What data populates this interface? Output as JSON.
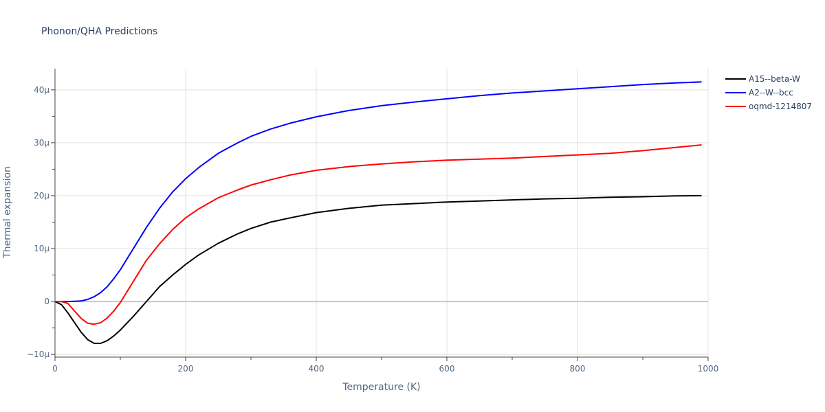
{
  "chart_data": {
    "type": "line",
    "title": "Phonon/QHA Predictions",
    "xlabel": "Temperature (K)",
    "ylabel": "Thermal expansion",
    "xlim": [
      0,
      1000
    ],
    "ylim": [
      -10.5,
      44
    ],
    "x_ticks": [
      0,
      200,
      400,
      600,
      800,
      1000
    ],
    "x_tick_labels": [
      "0",
      "200",
      "400",
      "600",
      "800",
      "1000"
    ],
    "y_ticks": [
      -10,
      0,
      10,
      20,
      30,
      40
    ],
    "y_tick_labels": [
      "−10μ",
      "0",
      "10μ",
      "20μ",
      "30μ",
      "40μ"
    ],
    "grid": true,
    "legend_position": "top-right",
    "series": [
      {
        "name": "A15--beta-W",
        "color": "#000000",
        "x": [
          0,
          10,
          20,
          30,
          40,
          50,
          60,
          70,
          80,
          90,
          100,
          120,
          140,
          160,
          180,
          200,
          220,
          250,
          280,
          300,
          330,
          360,
          400,
          450,
          500,
          550,
          600,
          650,
          700,
          750,
          800,
          850,
          900,
          950,
          990
        ],
        "y": [
          0,
          -0.6,
          -2.2,
          -4.0,
          -5.8,
          -7.2,
          -7.9,
          -7.9,
          -7.4,
          -6.5,
          -5.4,
          -2.8,
          0,
          2.8,
          5.0,
          7.0,
          8.8,
          11.0,
          12.8,
          13.8,
          15.0,
          15.8,
          16.8,
          17.6,
          18.2,
          18.5,
          18.8,
          19.0,
          19.2,
          19.4,
          19.5,
          19.7,
          19.8,
          19.95,
          20.0
        ]
      },
      {
        "name": "A2--W--bcc",
        "color": "#0000ff",
        "x": [
          0,
          10,
          20,
          30,
          40,
          50,
          60,
          70,
          80,
          90,
          100,
          120,
          140,
          160,
          180,
          200,
          220,
          250,
          280,
          300,
          330,
          360,
          400,
          450,
          500,
          550,
          600,
          650,
          700,
          750,
          800,
          850,
          900,
          950,
          990
        ],
        "y": [
          0,
          0,
          0,
          0.05,
          0.1,
          0.4,
          0.9,
          1.7,
          2.8,
          4.3,
          6.0,
          10.0,
          14.0,
          17.6,
          20.7,
          23.2,
          25.3,
          28.0,
          30.0,
          31.2,
          32.6,
          33.7,
          34.9,
          36.1,
          37.0,
          37.7,
          38.3,
          38.9,
          39.4,
          39.8,
          40.2,
          40.6,
          41.0,
          41.3,
          41.5
        ]
      },
      {
        "name": "oqmd-1214807",
        "color": "#ff0000",
        "x": [
          0,
          10,
          20,
          30,
          40,
          50,
          60,
          70,
          80,
          90,
          100,
          120,
          140,
          160,
          180,
          200,
          220,
          250,
          280,
          300,
          330,
          360,
          400,
          450,
          500,
          550,
          600,
          650,
          700,
          750,
          800,
          850,
          900,
          950,
          990
        ],
        "y": [
          0,
          0,
          -0.4,
          -1.8,
          -3.2,
          -4.1,
          -4.3,
          -4.0,
          -3.1,
          -1.8,
          -0.2,
          3.8,
          7.8,
          10.9,
          13.6,
          15.8,
          17.5,
          19.6,
          21.1,
          22.0,
          23.0,
          23.9,
          24.8,
          25.5,
          26.0,
          26.4,
          26.7,
          26.9,
          27.1,
          27.4,
          27.7,
          28.0,
          28.5,
          29.1,
          29.6
        ]
      }
    ]
  }
}
